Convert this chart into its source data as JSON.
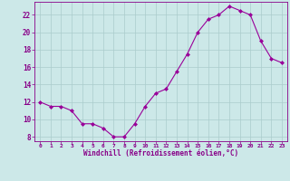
{
  "x": [
    0,
    1,
    2,
    3,
    4,
    5,
    6,
    7,
    8,
    9,
    10,
    11,
    12,
    13,
    14,
    15,
    16,
    17,
    18,
    19,
    20,
    21,
    22,
    23
  ],
  "y": [
    12.0,
    11.5,
    11.5,
    11.0,
    9.5,
    9.5,
    9.0,
    8.0,
    8.0,
    9.5,
    11.5,
    13.0,
    13.5,
    15.5,
    17.5,
    20.0,
    21.5,
    22.0,
    23.0,
    22.5,
    22.0,
    19.0,
    17.0,
    16.5
  ],
  "line_color": "#990099",
  "marker": "D",
  "marker_size": 2,
  "background_color": "#cce8e8",
  "grid_color": "#aacccc",
  "xlabel": "Windchill (Refroidissement éolien,°C)",
  "xlabel_color": "#880088",
  "tick_color": "#880088",
  "xlim": [
    -0.5,
    23.5
  ],
  "ylim": [
    7.5,
    23.5
  ],
  "yticks": [
    8,
    10,
    12,
    14,
    16,
    18,
    20,
    22
  ],
  "xticks": [
    0,
    1,
    2,
    3,
    4,
    5,
    6,
    7,
    8,
    9,
    10,
    11,
    12,
    13,
    14,
    15,
    16,
    17,
    18,
    19,
    20,
    21,
    22,
    23
  ],
  "xtick_labels": [
    "0",
    "1",
    "2",
    "3",
    "4",
    "5",
    "6",
    "7",
    "8",
    "9",
    "10",
    "11",
    "12",
    "13",
    "14",
    "15",
    "16",
    "17",
    "18",
    "19",
    "20",
    "21",
    "22",
    "23"
  ]
}
